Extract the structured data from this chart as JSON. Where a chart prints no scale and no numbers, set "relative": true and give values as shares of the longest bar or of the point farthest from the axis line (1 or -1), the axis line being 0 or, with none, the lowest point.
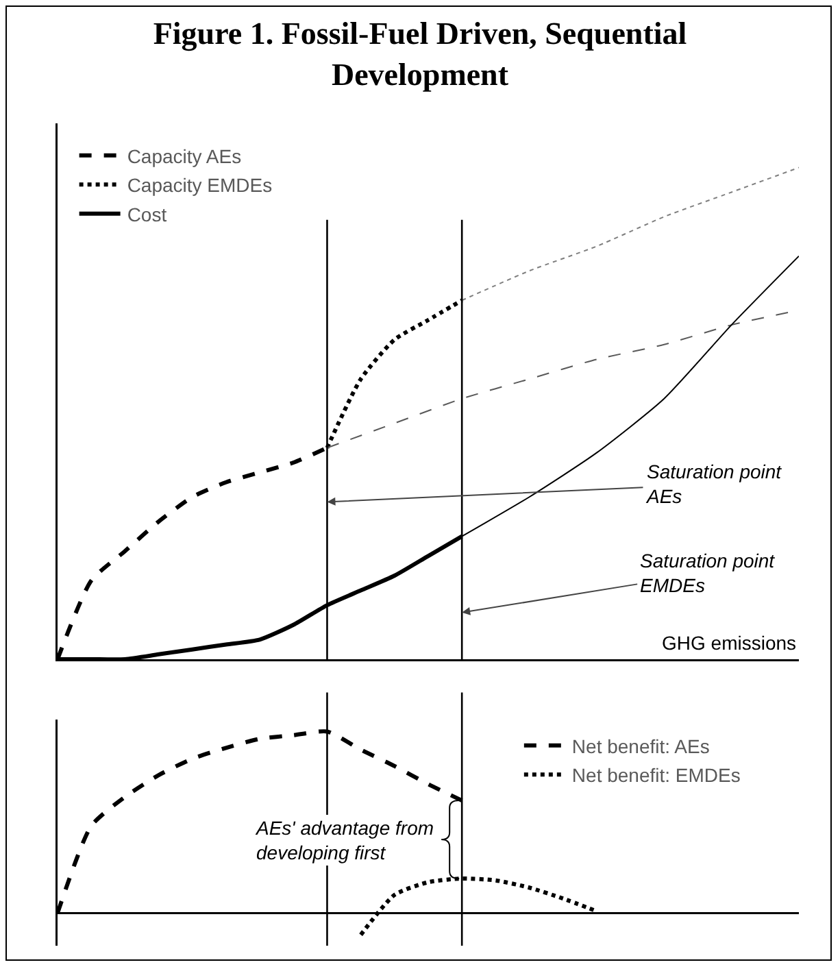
{
  "chart_data": [
    {
      "type": "line",
      "title": "Figure 1. Fossil-Fuel Driven, Sequential Development",
      "xlabel": "GHG emissions",
      "relative": true,
      "legend": "top left",
      "categories": [
        null,
        null,
        null,
        null,
        null,
        null,
        null,
        null,
        null,
        null,
        null,
        null,
        null,
        null,
        null,
        null,
        null,
        null,
        null,
        null,
        null,
        null,
        null
      ],
      "series": [
        {
          "name": "Capacity AEs",
          "color": "#000000",
          "line_style": "dashed",
          "values": [
            0,
            0.16,
            0.22,
            0.28,
            0.33,
            0.36,
            0.38,
            0.4,
            0.43,
            null,
            null,
            null,
            null,
            null,
            null,
            null,
            null,
            null,
            null,
            null,
            null,
            null,
            null
          ]
        },
        {
          "name": "Capacity EMDEs",
          "color": "#000000",
          "line_style": "dotted",
          "values": [
            null,
            null,
            null,
            null,
            null,
            null,
            null,
            null,
            0.43,
            0.57,
            0.65,
            0.69,
            0.73,
            null,
            null,
            null,
            null,
            null,
            null,
            null,
            null,
            null,
            null
          ]
        },
        {
          "name": "Cost",
          "color": "#000000",
          "line_style": "solid",
          "values": [
            0,
            0,
            0,
            0.01,
            0.02,
            0.03,
            0.04,
            0.07,
            0.11,
            0.14,
            0.17,
            0.21,
            0.25,
            null,
            null,
            null,
            null,
            null,
            null,
            null,
            null,
            null,
            null
          ]
        },
        {
          "color": "#595959",
          "line_style": "dashed",
          "values": [
            null,
            null,
            null,
            null,
            null,
            null,
            null,
            null,
            0.43,
            null,
            0.48,
            null,
            0.53,
            null,
            0.57,
            null,
            0.61,
            null,
            0.64,
            null,
            0.68,
            null,
            0.71
          ]
        },
        {
          "color": "#7f7f7f",
          "line_style": "dotted",
          "values": [
            null,
            null,
            null,
            null,
            null,
            null,
            null,
            null,
            null,
            null,
            null,
            null,
            0.73,
            null,
            0.79,
            null,
            0.84,
            null,
            0.9,
            null,
            0.95,
            null,
            1
          ]
        },
        {
          "color": "#000000",
          "line_style": "solid",
          "values": [
            null,
            null,
            null,
            null,
            null,
            null,
            null,
            null,
            null,
            null,
            null,
            null,
            0.25,
            null,
            0.33,
            null,
            0.42,
            null,
            0.53,
            null,
            0.68,
            null,
            0.82
          ]
        }
      ],
      "annotations": [
        "Saturation point AEs",
        "Saturation point EMDEs"
      ]
    },
    {
      "type": "line",
      "relative": true,
      "legend": "top right",
      "categories": [
        null,
        null,
        null,
        null,
        null,
        null,
        null,
        null,
        null,
        null,
        null,
        null,
        null,
        null,
        null,
        null,
        null,
        null,
        null,
        null,
        null,
        null,
        null
      ],
      "series": [
        {
          "name": "Net benefit: AEs",
          "color": "#000000",
          "line_style": "dashed",
          "values": [
            0,
            0.48,
            0.64,
            0.76,
            0.85,
            0.91,
            0.96,
            0.98,
            1,
            0.9,
            0.81,
            0.71,
            0.62,
            null,
            null,
            null,
            null,
            null,
            null,
            null,
            null,
            null,
            null
          ]
        },
        {
          "name": "Net benefit: EMDEs",
          "color": "#000000",
          "line_style": "dotted",
          "values": [
            null,
            null,
            null,
            null,
            null,
            null,
            null,
            null,
            null,
            -0.12,
            0.1,
            0.17,
            0.19,
            0.18,
            0.14,
            0.08,
            0.01,
            null,
            null,
            null,
            null,
            null,
            null
          ]
        }
      ],
      "annotations": [
        "AEs' advantage from developing first"
      ]
    }
  ]
}
